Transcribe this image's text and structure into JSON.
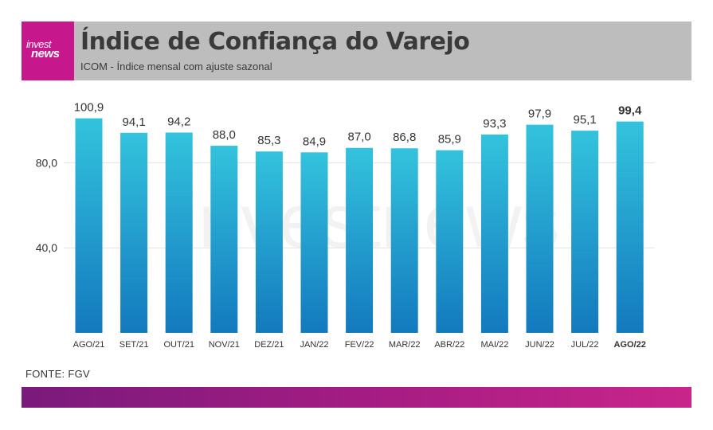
{
  "logo": {
    "line1": "invest",
    "line2": "news"
  },
  "header": {
    "title": "Índice de Confiança do Varejo",
    "subtitle": "ICOM - Índice mensal com ajuste sazonal"
  },
  "watermark": "investnews",
  "source": "FONTE: FGV",
  "colors": {
    "bar_top": "#33c3dd",
    "bar_bottom": "#1379be",
    "header_bg": "#bdbdbd",
    "logo_bg": "#c6178c"
  },
  "chart_data": {
    "type": "bar",
    "title": "Índice de Confiança do Varejo",
    "subtitle": "ICOM - Índice mensal com ajuste sazonal",
    "categories": [
      "AGO/21",
      "SET/21",
      "OUT/21",
      "NOV/21",
      "DEZ/21",
      "JAN/22",
      "FEV/22",
      "MAR/22",
      "ABR/22",
      "MAI/22",
      "JUN/22",
      "JUL/22",
      "AGO/22"
    ],
    "values": [
      100.9,
      94.1,
      94.2,
      88.0,
      85.3,
      84.9,
      87.0,
      86.8,
      85.9,
      93.3,
      97.9,
      95.1,
      99.4
    ],
    "value_labels": [
      "100,9",
      "94,1",
      "94,2",
      "88,0",
      "85,3",
      "84,9",
      "87,0",
      "86,8",
      "85,9",
      "93,3",
      "97,9",
      "95,1",
      "99,4"
    ],
    "highlight_index": 12,
    "yticks": [
      40,
      80
    ],
    "ytick_labels": [
      "40,0",
      "80,0"
    ],
    "ylim": [
      0,
      110
    ],
    "grid": true,
    "legend": "none",
    "xlabel": "",
    "ylabel": ""
  }
}
